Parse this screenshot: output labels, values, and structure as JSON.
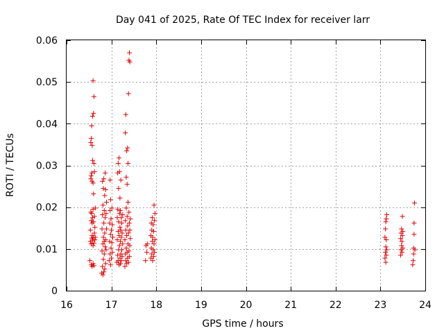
{
  "chart_data": {
    "type": "scatter",
    "title": "Day 041 of 2025, Rate Of TEC Index for receiver larr",
    "xlabel": "GPS time / hours",
    "ylabel": "ROTI / TECUs",
    "xlim": [
      16,
      24
    ],
    "ylim": [
      0,
      0.06
    ],
    "x_ticks": [
      16,
      17,
      18,
      19,
      20,
      21,
      22,
      23,
      24
    ],
    "y_ticks": [
      0,
      0.01,
      0.02,
      0.03,
      0.04,
      0.05,
      0.06
    ],
    "x_tick_labels": [
      "16",
      "17",
      "18",
      "19",
      "20",
      "21",
      "22",
      "23",
      "24"
    ],
    "y_tick_labels": [
      "0",
      "0.01",
      "0.02",
      "0.03",
      "0.04",
      "0.05",
      "0.06"
    ],
    "grid": true,
    "marker": "+",
    "marker_color": "#e00000",
    "series": [
      {
        "name": "ROTI",
        "points": [
          [
            16.52,
            0.0072
          ],
          [
            16.53,
            0.0118
          ],
          [
            16.53,
            0.0145
          ],
          [
            16.54,
            0.0188
          ],
          [
            16.54,
            0.0268
          ],
          [
            16.54,
            0.0355
          ],
          [
            16.55,
            0.0062
          ],
          [
            16.55,
            0.0112
          ],
          [
            16.55,
            0.0168
          ],
          [
            16.55,
            0.0275
          ],
          [
            16.55,
            0.0365
          ],
          [
            16.56,
            0.0126
          ],
          [
            16.56,
            0.0185
          ],
          [
            16.56,
            0.0282
          ],
          [
            16.56,
            0.0395
          ],
          [
            16.57,
            0.0058
          ],
          [
            16.57,
            0.0132
          ],
          [
            16.57,
            0.0162
          ],
          [
            16.57,
            0.0262
          ],
          [
            16.57,
            0.0348
          ],
          [
            16.58,
            0.0121
          ],
          [
            16.58,
            0.0175
          ],
          [
            16.58,
            0.0312
          ],
          [
            16.58,
            0.0418
          ],
          [
            16.59,
            0.0065
          ],
          [
            16.59,
            0.0108
          ],
          [
            16.59,
            0.0195
          ],
          [
            16.59,
            0.0258
          ],
          [
            16.59,
            0.0503
          ],
          [
            16.6,
            0.0128
          ],
          [
            16.6,
            0.0165
          ],
          [
            16.6,
            0.0232
          ],
          [
            16.6,
            0.0425
          ],
          [
            16.61,
            0.006
          ],
          [
            16.61,
            0.0114
          ],
          [
            16.61,
            0.0305
          ],
          [
            16.61,
            0.0465
          ],
          [
            16.62,
            0.0138
          ],
          [
            16.62,
            0.0178
          ],
          [
            16.62,
            0.0285
          ],
          [
            16.63,
            0.0122
          ],
          [
            16.63,
            0.0152
          ],
          [
            16.64,
            0.0198
          ],
          [
            16.64,
            0.0128
          ],
          [
            16.78,
            0.0042
          ],
          [
            16.79,
            0.0095
          ],
          [
            16.79,
            0.0148
          ],
          [
            16.8,
            0.0058
          ],
          [
            16.8,
            0.0182
          ],
          [
            16.8,
            0.0262
          ],
          [
            16.81,
            0.0038
          ],
          [
            16.81,
            0.0112
          ],
          [
            16.81,
            0.0205
          ],
          [
            16.82,
            0.0075
          ],
          [
            16.82,
            0.0128
          ],
          [
            16.82,
            0.0245
          ],
          [
            16.83,
            0.0045
          ],
          [
            16.83,
            0.0162
          ],
          [
            16.83,
            0.0268
          ],
          [
            16.84,
            0.0088
          ],
          [
            16.84,
            0.0118
          ],
          [
            16.84,
            0.0192
          ],
          [
            16.85,
            0.0052
          ],
          [
            16.85,
            0.0138
          ],
          [
            16.85,
            0.0228
          ],
          [
            16.86,
            0.0105
          ],
          [
            16.86,
            0.0175
          ],
          [
            16.86,
            0.0282
          ],
          [
            16.87,
            0.0065
          ],
          [
            16.87,
            0.0122
          ],
          [
            16.87,
            0.0242
          ],
          [
            16.88,
            0.0098
          ],
          [
            16.88,
            0.0185
          ],
          [
            16.89,
            0.0148
          ],
          [
            16.89,
            0.0212
          ],
          [
            16.95,
            0.0072
          ],
          [
            16.96,
            0.0118
          ],
          [
            16.96,
            0.0162
          ],
          [
            16.97,
            0.0088
          ],
          [
            16.97,
            0.0192
          ],
          [
            16.97,
            0.0265
          ],
          [
            16.98,
            0.0062
          ],
          [
            16.98,
            0.0135
          ],
          [
            16.98,
            0.0218
          ],
          [
            16.99,
            0.0102
          ],
          [
            16.99,
            0.0172
          ],
          [
            17.0,
            0.0078
          ],
          [
            17.0,
            0.0145
          ],
          [
            17.01,
            0.0115
          ],
          [
            17.01,
            0.0198
          ],
          [
            17.02,
            0.0092
          ],
          [
            17.02,
            0.0158
          ],
          [
            17.03,
            0.0128
          ],
          [
            17.12,
            0.0068
          ],
          [
            17.13,
            0.0122
          ],
          [
            17.13,
            0.0175
          ],
          [
            17.14,
            0.0085
          ],
          [
            17.14,
            0.0195
          ],
          [
            17.14,
            0.0282
          ],
          [
            17.15,
            0.0072
          ],
          [
            17.15,
            0.0142
          ],
          [
            17.15,
            0.0305
          ],
          [
            17.16,
            0.0098
          ],
          [
            17.16,
            0.0165
          ],
          [
            17.16,
            0.0245
          ],
          [
            17.17,
            0.0062
          ],
          [
            17.17,
            0.0132
          ],
          [
            17.17,
            0.0318
          ],
          [
            17.18,
            0.0108
          ],
          [
            17.18,
            0.0185
          ],
          [
            17.18,
            0.0285
          ],
          [
            17.19,
            0.0078
          ],
          [
            17.19,
            0.0152
          ],
          [
            17.19,
            0.0222
          ],
          [
            17.2,
            0.0065
          ],
          [
            17.2,
            0.0118
          ],
          [
            17.2,
            0.0192
          ],
          [
            17.21,
            0.0088
          ],
          [
            17.21,
            0.0145
          ],
          [
            17.21,
            0.0265
          ],
          [
            17.22,
            0.0072
          ],
          [
            17.22,
            0.0128
          ],
          [
            17.22,
            0.0175
          ],
          [
            17.23,
            0.0098
          ],
          [
            17.23,
            0.0162
          ],
          [
            17.24,
            0.0082
          ],
          [
            17.24,
            0.0138
          ],
          [
            17.25,
            0.0112
          ],
          [
            17.25,
            0.0182
          ],
          [
            17.3,
            0.0058
          ],
          [
            17.3,
            0.0122
          ],
          [
            17.31,
            0.0088
          ],
          [
            17.31,
            0.0168
          ],
          [
            17.31,
            0.0378
          ],
          [
            17.32,
            0.0072
          ],
          [
            17.32,
            0.0145
          ],
          [
            17.32,
            0.0422
          ],
          [
            17.33,
            0.0102
          ],
          [
            17.33,
            0.0198
          ],
          [
            17.33,
            0.0272
          ],
          [
            17.34,
            0.0065
          ],
          [
            17.34,
            0.0132
          ],
          [
            17.34,
            0.0335
          ],
          [
            17.35,
            0.0092
          ],
          [
            17.35,
            0.0178
          ],
          [
            17.35,
            0.0255
          ],
          [
            17.36,
            0.0078
          ],
          [
            17.36,
            0.0155
          ],
          [
            17.36,
            0.0342
          ],
          [
            17.37,
            0.0112
          ],
          [
            17.37,
            0.0212
          ],
          [
            17.37,
            0.0305
          ],
          [
            17.38,
            0.0068
          ],
          [
            17.38,
            0.0138
          ],
          [
            17.38,
            0.0472
          ],
          [
            17.39,
            0.0095
          ],
          [
            17.39,
            0.0188
          ],
          [
            17.39,
            0.0552
          ],
          [
            17.4,
            0.0082
          ],
          [
            17.4,
            0.0162
          ],
          [
            17.4,
            0.057
          ],
          [
            17.41,
            0.0108
          ],
          [
            17.41,
            0.0145
          ],
          [
            17.41,
            0.0548
          ],
          [
            17.42,
            0.0125
          ],
          [
            17.42,
            0.0172
          ],
          [
            17.76,
            0.0072
          ],
          [
            17.77,
            0.0108
          ],
          [
            17.79,
            0.0092
          ],
          [
            17.8,
            0.0112
          ],
          [
            17.88,
            0.0078
          ],
          [
            17.88,
            0.0132
          ],
          [
            17.89,
            0.0102
          ],
          [
            17.89,
            0.0162
          ],
          [
            17.9,
            0.0088
          ],
          [
            17.9,
            0.0145
          ],
          [
            17.91,
            0.0118
          ],
          [
            17.91,
            0.0175
          ],
          [
            17.92,
            0.0072
          ],
          [
            17.92,
            0.0128
          ],
          [
            17.93,
            0.0098
          ],
          [
            17.93,
            0.0158
          ],
          [
            17.94,
            0.0082
          ],
          [
            17.94,
            0.0142
          ],
          [
            17.95,
            0.0112
          ],
          [
            17.95,
            0.0205
          ],
          [
            17.96,
            0.0092
          ],
          [
            17.96,
            0.0168
          ],
          [
            17.97,
            0.0122
          ],
          [
            17.97,
            0.0185
          ],
          [
            23.1,
            0.0078
          ],
          [
            23.1,
            0.0128
          ],
          [
            23.11,
            0.0092
          ],
          [
            23.11,
            0.0148
          ],
          [
            23.12,
            0.0068
          ],
          [
            23.12,
            0.0105
          ],
          [
            23.12,
            0.0165
          ],
          [
            23.13,
            0.0085
          ],
          [
            23.13,
            0.0122
          ],
          [
            23.13,
            0.0172
          ],
          [
            23.14,
            0.0098
          ],
          [
            23.14,
            0.0182
          ],
          [
            23.45,
            0.0085
          ],
          [
            23.45,
            0.0125
          ],
          [
            23.46,
            0.0098
          ],
          [
            23.46,
            0.0138
          ],
          [
            23.47,
            0.0108
          ],
          [
            23.47,
            0.0148
          ],
          [
            23.48,
            0.0092
          ],
          [
            23.48,
            0.0118
          ],
          [
            23.49,
            0.0132
          ],
          [
            23.49,
            0.0178
          ],
          [
            23.5,
            0.0102
          ],
          [
            23.5,
            0.0142
          ],
          [
            23.72,
            0.0062
          ],
          [
            23.73,
            0.0072
          ],
          [
            23.74,
            0.0088
          ],
          [
            23.74,
            0.0102
          ],
          [
            23.75,
            0.0162
          ],
          [
            23.75,
            0.0135
          ],
          [
            23.76,
            0.021
          ],
          [
            23.77,
            0.0098
          ]
        ]
      }
    ]
  }
}
